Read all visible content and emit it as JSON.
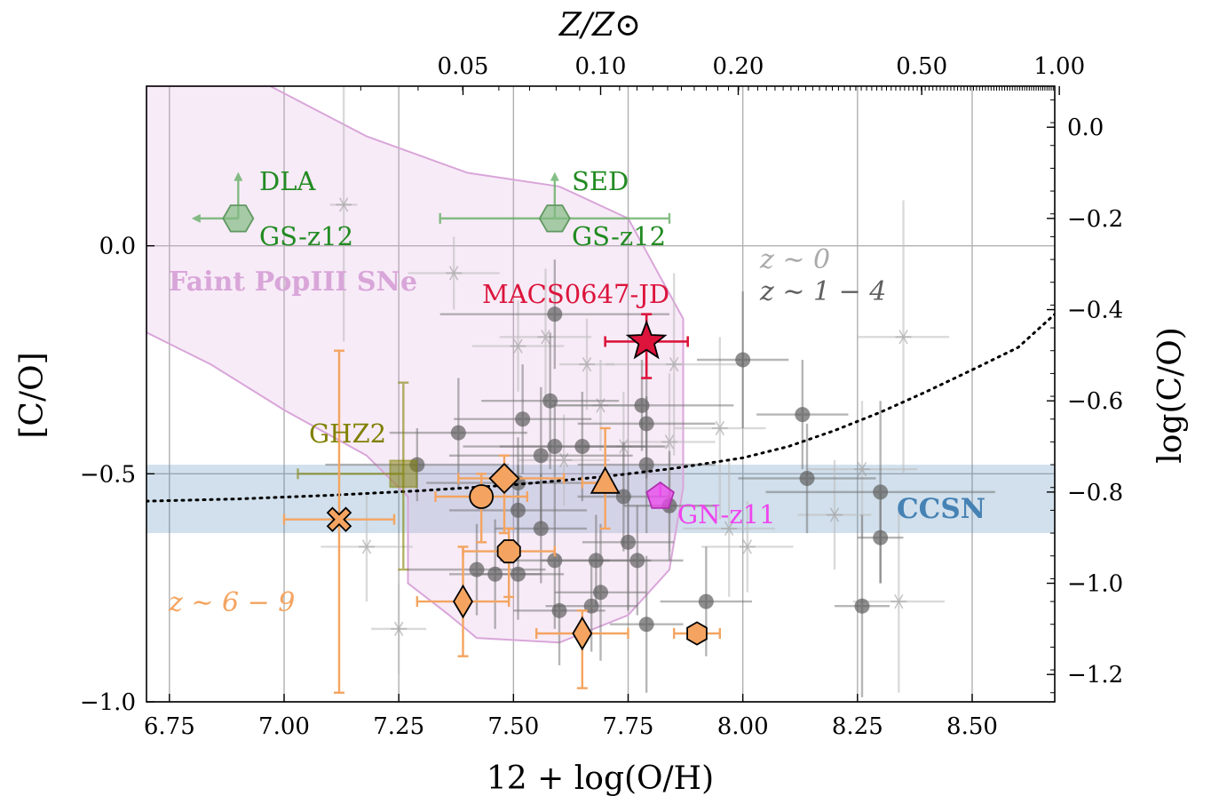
{
  "chart_data": {
    "type": "scatter",
    "xlabel": "12 + log(O/H)",
    "ylabel": "[C/O]",
    "top_xlabel": "Z/Z⊙",
    "right_ylabel": "log(C/O)",
    "xlim": [
      6.7,
      8.68
    ],
    "ylim": [
      -1.0,
      0.35
    ],
    "x_ticks": [
      "6.75",
      "7.00",
      "7.25",
      "7.50",
      "7.75",
      "8.00",
      "8.25",
      "8.50"
    ],
    "y_ticks": [
      "−1.0",
      "−0.5",
      "0.0"
    ],
    "top_ticks": [
      {
        "label": "0.05",
        "logOH": 7.39
      },
      {
        "label": "0.10",
        "logOH": 7.69
      },
      {
        "label": "0.20",
        "logOH": 7.99
      },
      {
        "label": "0.50",
        "logOH": 8.39
      },
      {
        "label": "1.00",
        "logOH": 8.69
      }
    ],
    "right_ticks": [
      "0.0",
      "−0.2",
      "−0.4",
      "−0.6",
      "−0.8",
      "−1.0",
      "−1.2"
    ],
    "right_offset": -0.26,
    "grid": true,
    "colors": {
      "popIII": "#d9a6d9",
      "ccsn": "#4682b4",
      "orange": "#f4a460",
      "macs": "#dc143c",
      "gnz11": "#ee44ee",
      "gsz12": "#5daa5d",
      "ghz2": "#808000",
      "gray": "#505050"
    },
    "annotations": {
      "popIII": "Faint PopIII SNe",
      "ccsn": "CCSN",
      "z0": "z ∼ 0",
      "z14": "z ∼ 1 − 4",
      "z69": "z ∼ 6 − 9",
      "macs": "MACS0647-JD",
      "gnz11": "GN-z11",
      "ghz2": "GHZ2",
      "dla": "DLA",
      "sed": "SED",
      "gsz12_a": "GS-z12",
      "gsz12_b": "GS-z12"
    },
    "ccsn_band": [
      -0.63,
      -0.48
    ],
    "popIII_polygon": [
      [
        6.7,
        0.35
      ],
      [
        6.97,
        0.35
      ],
      [
        7.18,
        0.24
      ],
      [
        7.4,
        0.16
      ],
      [
        7.6,
        0.13
      ],
      [
        7.75,
        0.06
      ],
      [
        7.87,
        -0.16
      ],
      [
        7.87,
        -0.53
      ],
      [
        7.84,
        -0.71
      ],
      [
        7.75,
        -0.81
      ],
      [
        7.6,
        -0.87
      ],
      [
        7.42,
        -0.86
      ],
      [
        7.36,
        -0.81
      ],
      [
        7.27,
        -0.74
      ],
      [
        7.27,
        -0.55
      ],
      [
        7.18,
        -0.46
      ],
      [
        7.0,
        -0.36
      ],
      [
        6.84,
        -0.26
      ],
      [
        6.7,
        -0.19
      ]
    ],
    "trend_line": [
      [
        6.7,
        -0.56
      ],
      [
        6.9,
        -0.555
      ],
      [
        7.1,
        -0.547
      ],
      [
        7.3,
        -0.537
      ],
      [
        7.5,
        -0.524
      ],
      [
        7.7,
        -0.506
      ],
      [
        7.85,
        -0.488
      ],
      [
        8.0,
        -0.465
      ],
      [
        8.1,
        -0.44
      ],
      [
        8.2,
        -0.405
      ],
      [
        8.3,
        -0.365
      ],
      [
        8.4,
        -0.32
      ],
      [
        8.5,
        -0.272
      ],
      [
        8.6,
        -0.223
      ],
      [
        8.68,
        -0.15
      ]
    ],
    "series": [
      {
        "name": "z ∼ 0",
        "marker": "asterisk",
        "points": [
          {
            "x": 7.13,
            "y": 0.09,
            "xerr": 0.03,
            "yerr": 0.3
          },
          {
            "x": 7.37,
            "y": -0.06,
            "xerr": 0.1,
            "yerr": 0.08
          },
          {
            "x": 7.51,
            "y": -0.22,
            "xerr": 0.1,
            "yerr": 0.1
          },
          {
            "x": 7.57,
            "y": -0.2,
            "xerr": 0.1,
            "yerr": 0.15
          },
          {
            "x": 7.66,
            "y": -0.26,
            "xerr": 0.06,
            "yerr": 0.1
          },
          {
            "x": 7.69,
            "y": -0.35,
            "xerr": 0.1,
            "yerr": 0.1
          },
          {
            "x": 7.61,
            "y": -0.47,
            "xerr": 0.1,
            "yerr": 0.1
          },
          {
            "x": 7.74,
            "y": -0.44,
            "xerr": 0.1,
            "yerr": 0.12
          },
          {
            "x": 7.85,
            "y": -0.26,
            "xerr": 0.15,
            "yerr": 0.2
          },
          {
            "x": 7.84,
            "y": -0.43,
            "xerr": 0.1,
            "yerr": 0.15
          },
          {
            "x": 7.95,
            "y": -0.4,
            "xerr": 0.1,
            "yerr": 0.2
          },
          {
            "x": 7.84,
            "y": -0.57,
            "xerr": 0.1,
            "yerr": 0.1
          },
          {
            "x": 7.97,
            "y": -0.62,
            "xerr": 0.1,
            "yerr": 0.15
          },
          {
            "x": 8.01,
            "y": -0.66,
            "xerr": 0.1,
            "yerr": 0.1
          },
          {
            "x": 8.2,
            "y": -0.59,
            "xerr": 0.08,
            "yerr": 0.12
          },
          {
            "x": 8.26,
            "y": -0.49,
            "xerr": 0.12,
            "yerr": 0.15
          },
          {
            "x": 8.35,
            "y": -0.2,
            "xerr": 0.1,
            "yerr": 0.3
          },
          {
            "x": 8.34,
            "y": -0.78,
            "xerr": 0.1,
            "yerr": 0.2
          },
          {
            "x": 7.25,
            "y": -0.84,
            "xerr": 0.06,
            "yerr": 0.1
          },
          {
            "x": 7.18,
            "y": -0.66,
            "xerr": 0.1,
            "yerr": 0.12
          }
        ]
      },
      {
        "name": "z ∼ 1 − 4",
        "marker": "circle",
        "points": [
          {
            "x": 7.59,
            "y": -0.15,
            "xerr": 0.25,
            "yerr": 0.12
          },
          {
            "x": 7.29,
            "y": -0.48,
            "xerr": 0.2,
            "yerr": 0.08
          },
          {
            "x": 7.38,
            "y": -0.41,
            "xerr": 0.15,
            "yerr": 0.12
          },
          {
            "x": 7.51,
            "y": -0.52,
            "xerr": 0.2,
            "yerr": 0.1
          },
          {
            "x": 7.52,
            "y": -0.38,
            "xerr": 0.15,
            "yerr": 0.12
          },
          {
            "x": 7.56,
            "y": -0.46,
            "xerr": 0.2,
            "yerr": 0.15
          },
          {
            "x": 7.58,
            "y": -0.34,
            "xerr": 0.15,
            "yerr": 0.15
          },
          {
            "x": 7.59,
            "y": -0.44,
            "xerr": 0.2,
            "yerr": 0.1
          },
          {
            "x": 7.65,
            "y": -0.44,
            "xerr": 0.18,
            "yerr": 0.12
          },
          {
            "x": 7.78,
            "y": -0.35,
            "xerr": 0.2,
            "yerr": 0.1
          },
          {
            "x": 7.79,
            "y": -0.39,
            "xerr": 0.15,
            "yerr": 0.12
          },
          {
            "x": 7.79,
            "y": -0.48,
            "xerr": 0.15,
            "yerr": 0.15
          },
          {
            "x": 7.74,
            "y": -0.55,
            "xerr": 0.1,
            "yerr": 0.12
          },
          {
            "x": 7.51,
            "y": -0.58,
            "xerr": 0.15,
            "yerr": 0.1
          },
          {
            "x": 7.56,
            "y": -0.62,
            "xerr": 0.1,
            "yerr": 0.12
          },
          {
            "x": 7.75,
            "y": -0.65,
            "xerr": 0.1,
            "yerr": 0.15
          },
          {
            "x": 7.77,
            "y": -0.69,
            "xerr": 0.1,
            "yerr": 0.12
          },
          {
            "x": 7.42,
            "y": -0.71,
            "xerr": 0.15,
            "yerr": 0.1
          },
          {
            "x": 7.46,
            "y": -0.72,
            "xerr": 0.1,
            "yerr": 0.12
          },
          {
            "x": 7.51,
            "y": -0.72,
            "xerr": 0.1,
            "yerr": 0.1
          },
          {
            "x": 7.59,
            "y": -0.69,
            "xerr": 0.12,
            "yerr": 0.15
          },
          {
            "x": 7.68,
            "y": -0.69,
            "xerr": 0.12,
            "yerr": 0.1
          },
          {
            "x": 7.69,
            "y": -0.76,
            "xerr": 0.1,
            "yerr": 0.15
          },
          {
            "x": 7.67,
            "y": -0.79,
            "xerr": 0.1,
            "yerr": 0.1
          },
          {
            "x": 7.6,
            "y": -0.8,
            "xerr": 0.1,
            "yerr": 0.12
          },
          {
            "x": 7.79,
            "y": -0.83,
            "xerr": 0.08,
            "yerr": 0.15
          },
          {
            "x": 7.92,
            "y": -0.78,
            "xerr": 0.1,
            "yerr": 0.12
          },
          {
            "x": 8.0,
            "y": -0.25,
            "xerr": 0.1,
            "yerr": 0.15
          },
          {
            "x": 8.13,
            "y": -0.37,
            "xerr": 0.1,
            "yerr": 0.12
          },
          {
            "x": 8.14,
            "y": -0.51,
            "xerr": 0.15,
            "yerr": 0.12
          },
          {
            "x": 8.3,
            "y": -0.54,
            "xerr": 0.25,
            "yerr": 0.2
          },
          {
            "x": 8.3,
            "y": -0.64,
            "xerr": 0.05,
            "yerr": 0.1
          },
          {
            "x": 8.26,
            "y": -0.79,
            "xerr": 0.06,
            "yerr": 0.2
          },
          {
            "x": 7.84,
            "y": -0.57,
            "xerr": 0.1,
            "yerr": 0.12
          }
        ]
      },
      {
        "name": "z ∼ 6 − 9",
        "marker": "mixed",
        "points": [
          {
            "x": 7.12,
            "y": -0.6,
            "xerr": [
              0.12,
              0.12
            ],
            "yerr": [
              0.38,
              0.37
            ],
            "shape": "x",
            "size": 26
          },
          {
            "x": 7.43,
            "y": -0.55,
            "xerr": [
              0.1,
              0.1
            ],
            "yerr": [
              0.1,
              0.05
            ],
            "shape": "circle",
            "size": 26
          },
          {
            "x": 7.48,
            "y": -0.51,
            "xerr": [
              0.1,
              0.13
            ],
            "yerr": [
              0.12,
              0.05
            ],
            "shape": "diamond",
            "size": 26
          },
          {
            "x": 7.49,
            "y": -0.67,
            "xerr": [
              0.1,
              0.1
            ],
            "yerr": [
              0.1,
              0.05
            ],
            "shape": "octagon",
            "size": 26
          },
          {
            "x": 7.39,
            "y": -0.78,
            "xerr": [
              0.1,
              0.1
            ],
            "yerr": [
              0.12,
              0.12
            ],
            "shape": "thin_diamond",
            "size": 26
          },
          {
            "x": 7.65,
            "y": -0.85,
            "xerr": [
              0.1,
              0.1
            ],
            "yerr": [
              0.12,
              0.05
            ],
            "shape": "thin_diamond",
            "size": 26
          },
          {
            "x": 7.9,
            "y": -0.85,
            "xerr": [
              0.05,
              0.05
            ],
            "yerr": [
              0.0,
              0.0
            ],
            "shape": "hexagon",
            "size": 24
          },
          {
            "x": 7.7,
            "y": -0.52,
            "xerr": [
              0.05,
              0.0
            ],
            "yerr": [
              0.1,
              0.12
            ],
            "shape": "triangle",
            "size": 28
          }
        ]
      },
      {
        "name": "MACS0647-JD",
        "marker": "star",
        "points": [
          {
            "x": 7.79,
            "y": -0.21,
            "xerr": [
              0.09,
              0.09
            ],
            "yerr": [
              0.08,
              0.06
            ]
          }
        ]
      },
      {
        "name": "GN-z11",
        "marker": "pentagon",
        "points": [
          {
            "x": 7.82,
            "y": -0.55,
            "xerr": [
              0.0,
              0.0
            ],
            "yerr": [
              0.0,
              0.03
            ]
          }
        ]
      },
      {
        "name": "GHZ2",
        "marker": "square",
        "points": [
          {
            "x": 7.26,
            "y": -0.5,
            "xerr": [
              0.23,
              0.0
            ],
            "yerr": [
              0.21,
              0.2
            ]
          }
        ]
      },
      {
        "name": "GS-z12 DLA",
        "marker": "hexagon",
        "points": [
          {
            "x": 6.9,
            "y": 0.06,
            "xerr_left_limit": 0.09,
            "yerr_up_limit": 0.09
          }
        ]
      },
      {
        "name": "GS-z12 SED",
        "marker": "hexagon",
        "points": [
          {
            "x": 7.59,
            "y": 0.06,
            "xerr": [
              0.25,
              0.25
            ],
            "yerr_up_limit": 0.09
          }
        ]
      }
    ]
  }
}
